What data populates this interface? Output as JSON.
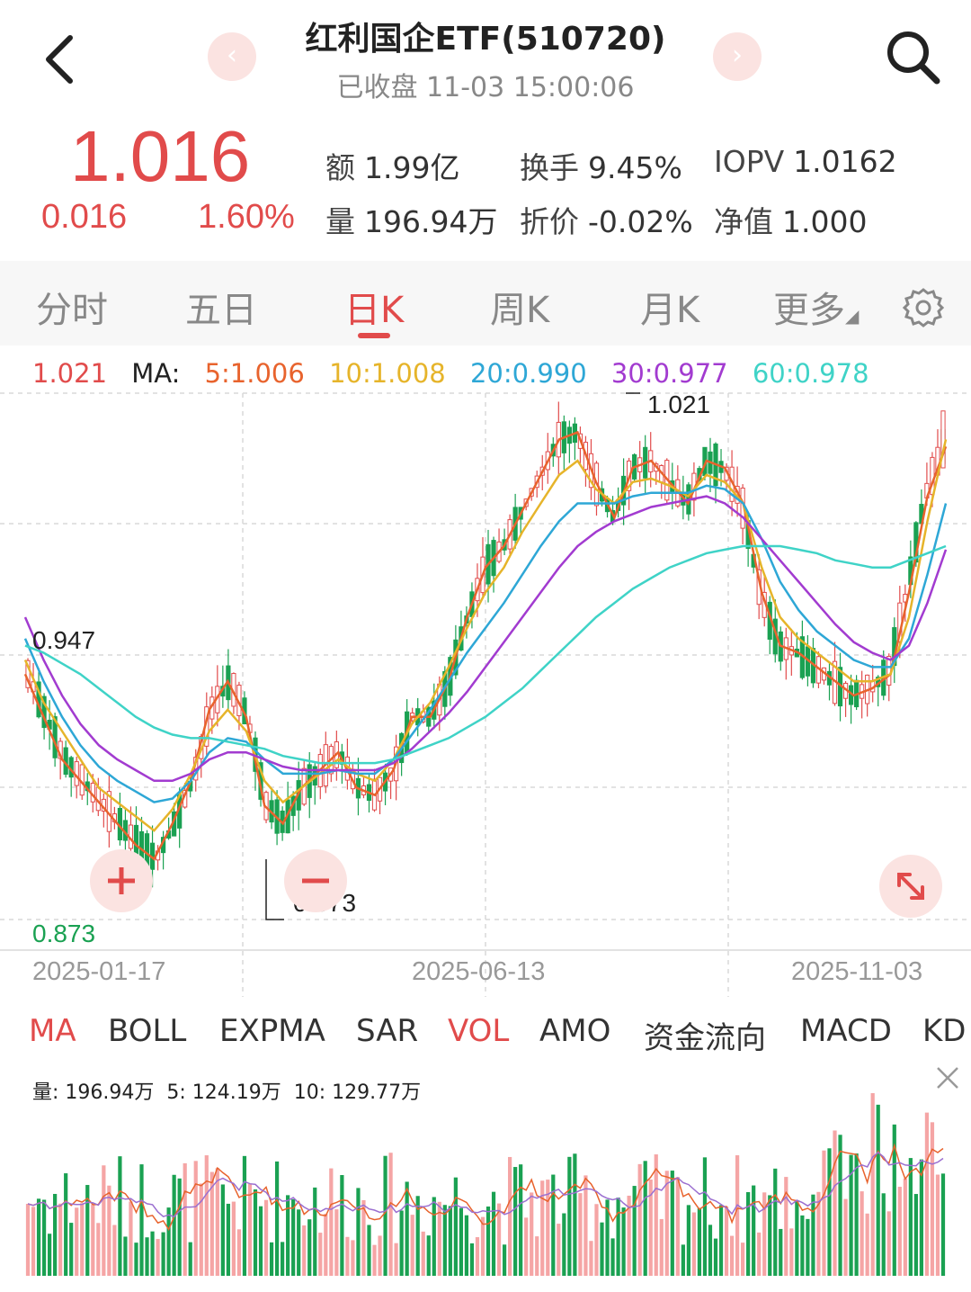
{
  "header": {
    "title": "红利国企ETF(510720)",
    "subtitle": "已收盘 11-03 15:00:06",
    "prev_icon": "chevron-left-icon",
    "next_icon": "chevron-right-icon"
  },
  "quote": {
    "price": "1.016",
    "change": "0.016",
    "change_pct": "1.60%",
    "stats": [
      {
        "label": "额",
        "value": "1.99亿"
      },
      {
        "label": "换手",
        "value": "9.45%"
      },
      {
        "label": "IOPV",
        "value": "1.0162"
      },
      {
        "label": "量",
        "value": "196.94万"
      },
      {
        "label": "折价",
        "value": "-0.02%"
      },
      {
        "label": "净值",
        "value": "1.000"
      }
    ]
  },
  "tabs": [
    "分时",
    "五日",
    "日K",
    "周K",
    "月K",
    "更多"
  ],
  "active_tab": "日K",
  "ma_legend": {
    "price": "1.021",
    "label": "MA:",
    "ma5": "5:1.006",
    "ma10": "10:1.008",
    "ma20": "20:0.990",
    "ma30": "30:0.977",
    "ma60": "60:0.978"
  },
  "chart_labels": {
    "high": "1.021",
    "low": "0.873",
    "left_ref": "0.947",
    "bottom_axis": "0.873",
    "dates": [
      "2025-01-17",
      "2025-06-13",
      "2025-11-03"
    ]
  },
  "indicator_tabs": [
    "MA",
    "BOLL",
    "EXPMA",
    "SAR",
    "VOL",
    "AMO",
    "资金流向",
    "MACD",
    "KD"
  ],
  "vol_legend": {
    "vol": "量: 196.94万",
    "ma5": "5: 124.19万",
    "ma10": "10: 129.77万"
  },
  "colors": {
    "up": "#e14b4b",
    "down": "#1aa152",
    "ma5": "#e8632d",
    "ma10": "#e6b42a",
    "ma20": "#2ea7d6",
    "ma30": "#a23bd0",
    "ma60": "#3fd3c7"
  },
  "chart_data": {
    "type": "candlestick",
    "price_ylim": [
      0.873,
      1.021
    ],
    "x_start": "2025-01-02",
    "x_end": "2025-11-03",
    "series": [
      {
        "name": "MA5",
        "values": [
          0.942,
          0.93,
          0.918,
          0.912,
          0.906,
          0.9,
          0.894,
          0.89,
          0.9,
          0.912,
          0.932,
          0.94,
          0.93,
          0.905,
          0.9,
          0.91,
          0.915,
          0.92,
          0.91,
          0.908,
          0.915,
          0.93,
          0.93,
          0.94,
          0.958,
          0.972,
          0.978,
          0.988,
          0.998,
          1.008,
          1.01,
          0.996,
          0.986,
          1.0,
          1.002,
          0.996,
          0.99,
          1.002,
          1.0,
          0.99,
          0.965,
          0.95,
          0.948,
          0.944,
          0.94,
          0.936,
          0.938,
          0.942,
          0.965,
          0.992,
          1.006
        ]
      },
      {
        "name": "MA10",
        "values": [
          0.946,
          0.934,
          0.926,
          0.918,
          0.91,
          0.906,
          0.902,
          0.898,
          0.904,
          0.914,
          0.926,
          0.932,
          0.926,
          0.912,
          0.906,
          0.91,
          0.914,
          0.918,
          0.914,
          0.912,
          0.918,
          0.928,
          0.934,
          0.944,
          0.955,
          0.965,
          0.972,
          0.982,
          0.99,
          0.998,
          1.002,
          0.994,
          0.99,
          0.996,
          0.997,
          0.995,
          0.992,
          0.998,
          0.996,
          0.99,
          0.972,
          0.958,
          0.952,
          0.948,
          0.944,
          0.94,
          0.94,
          0.942,
          0.958,
          0.985,
          1.008
        ]
      },
      {
        "name": "MA20",
        "values": [
          0.952,
          0.94,
          0.93,
          0.922,
          0.916,
          0.912,
          0.909,
          0.906,
          0.907,
          0.912,
          0.92,
          0.924,
          0.923,
          0.918,
          0.914,
          0.914,
          0.914,
          0.915,
          0.914,
          0.914,
          0.918,
          0.925,
          0.932,
          0.94,
          0.948,
          0.955,
          0.962,
          0.97,
          0.978,
          0.985,
          0.99,
          0.99,
          0.99,
          0.992,
          0.993,
          0.993,
          0.993,
          0.995,
          0.994,
          0.99,
          0.98,
          0.968,
          0.96,
          0.954,
          0.95,
          0.946,
          0.944,
          0.944,
          0.952,
          0.97,
          0.99
        ]
      },
      {
        "name": "MA30",
        "values": [
          0.958,
          0.946,
          0.936,
          0.928,
          0.922,
          0.918,
          0.915,
          0.912,
          0.912,
          0.914,
          0.918,
          0.92,
          0.92,
          0.918,
          0.916,
          0.915,
          0.915,
          0.915,
          0.915,
          0.915,
          0.917,
          0.921,
          0.926,
          0.931,
          0.937,
          0.944,
          0.951,
          0.958,
          0.965,
          0.972,
          0.978,
          0.982,
          0.985,
          0.987,
          0.989,
          0.99,
          0.991,
          0.992,
          0.99,
          0.986,
          0.98,
          0.974,
          0.968,
          0.962,
          0.956,
          0.951,
          0.948,
          0.946,
          0.95,
          0.962,
          0.977
        ]
      },
      {
        "name": "MA60",
        "values": [
          0.95,
          0.948,
          0.945,
          0.942,
          0.938,
          0.934,
          0.93,
          0.927,
          0.925,
          0.924,
          0.924,
          0.923,
          0.922,
          0.921,
          0.919,
          0.918,
          0.917,
          0.917,
          0.917,
          0.917,
          0.918,
          0.92,
          0.922,
          0.924,
          0.927,
          0.93,
          0.934,
          0.938,
          0.943,
          0.948,
          0.953,
          0.958,
          0.962,
          0.966,
          0.969,
          0.972,
          0.974,
          0.976,
          0.977,
          0.978,
          0.978,
          0.978,
          0.977,
          0.976,
          0.974,
          0.973,
          0.972,
          0.972,
          0.974,
          0.976,
          0.978
        ]
      }
    ],
    "dates_shown": [
      "2025-01-17",
      "2025-06-13",
      "2025-11-03"
    ],
    "last_close": 1.016,
    "high": 1.021,
    "low": 0.873,
    "volume": {
      "latest": "196.94万",
      "ma5": "124.19万",
      "ma10": "129.77万"
    }
  }
}
